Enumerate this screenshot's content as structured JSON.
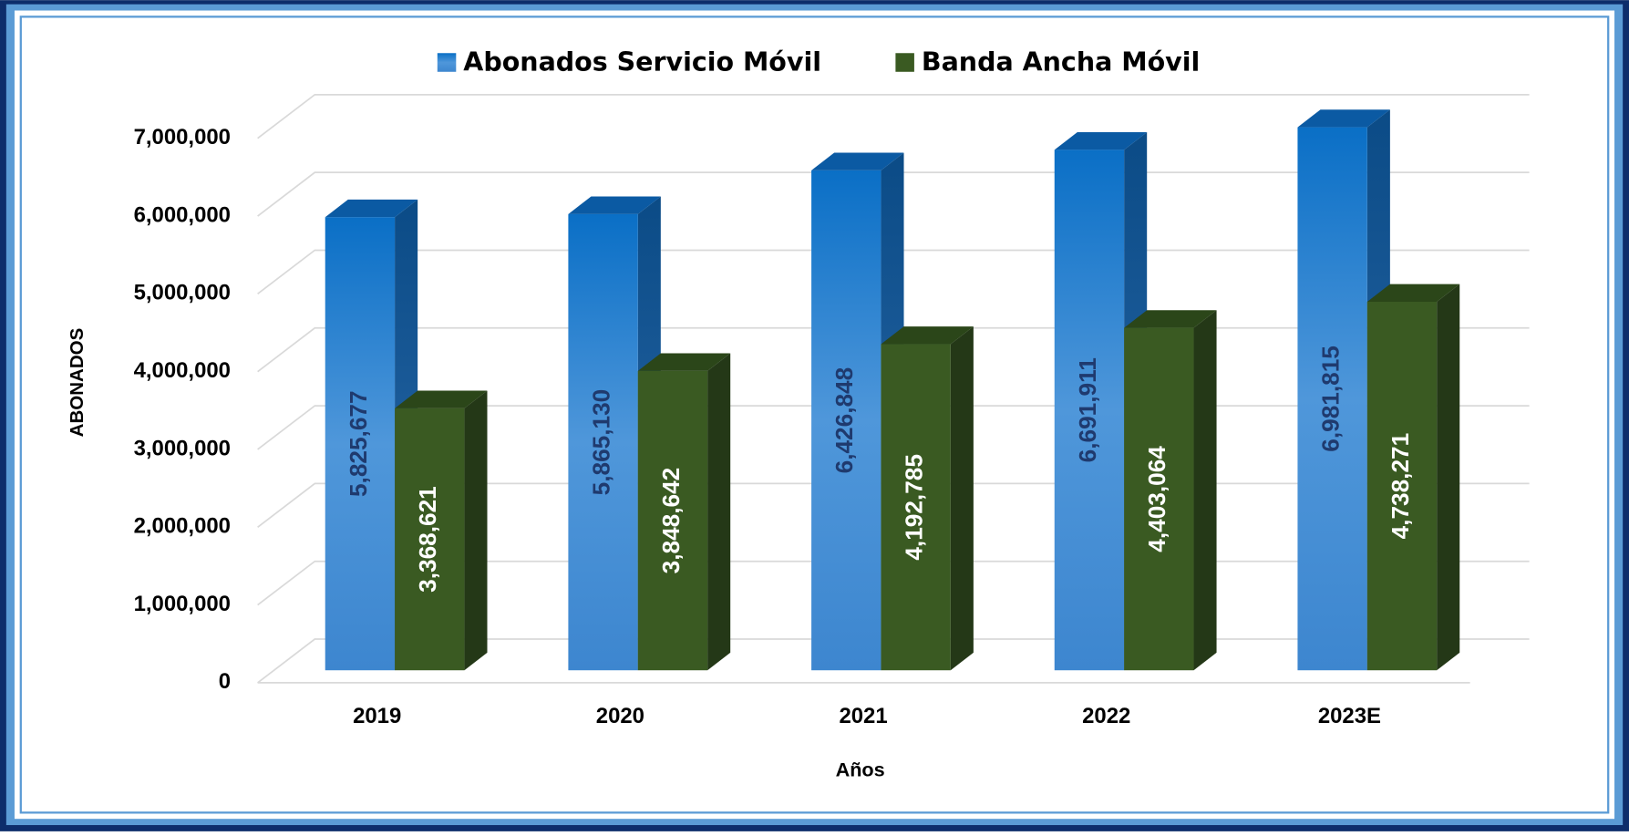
{
  "chart_data": {
    "type": "bar3d",
    "categories": [
      "2019",
      "2020",
      "2021",
      "2022",
      "2023E"
    ],
    "series": [
      {
        "name": "Abonados Servicio Móvil",
        "color": "#1a78cc",
        "values": [
          5825677,
          5865130,
          6426848,
          6691911,
          6981815
        ],
        "value_labels": [
          "5,825,677",
          "5,865,130",
          "6,426,848",
          "6,691,911",
          "6,981,815"
        ]
      },
      {
        "name": "Banda Ancha Móvil",
        "color": "#3a5a22",
        "values": [
          3368621,
          3848642,
          4192785,
          4403064,
          4738271
        ],
        "value_labels": [
          "3,368,621",
          "3,848,642",
          "4,192,785",
          "4,403,064",
          "4,738,271"
        ]
      }
    ],
    "ylim": [
      0,
      7000000
    ],
    "yticks": [
      0,
      {
        "value": 1000000,
        "label": "1,000,000"
      },
      {
        "value": 2000000,
        "label": "2,000,000"
      },
      {
        "value": 3000000,
        "label": "3,000,000"
      },
      {
        "value": 4000000,
        "label": "4,000,000"
      },
      {
        "value": 5000000,
        "label": "5,000,000"
      },
      {
        "value": 6000000,
        "label": "6,000,000"
      },
      {
        "value": 7000000,
        "label": "7,000,000"
      }
    ],
    "y_label": "ABONADOS",
    "x_label": "Años",
    "legend": "top",
    "grid": true
  }
}
